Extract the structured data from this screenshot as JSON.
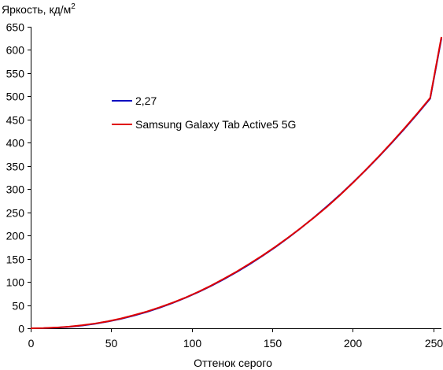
{
  "chart_data": {
    "type": "line",
    "title": "",
    "ylabel": "Яркость, кд/м",
    "ylabel_sup": "2",
    "xlabel": "Оттенок серого",
    "xlim": [
      0,
      255
    ],
    "ylim": [
      0,
      650
    ],
    "xticks": [
      0,
      50,
      100,
      150,
      200,
      250
    ],
    "yticks": [
      0,
      50,
      100,
      150,
      200,
      250,
      300,
      350,
      400,
      450,
      500,
      550,
      600,
      650
    ],
    "grid": false,
    "legend_position": "left-middle",
    "series": [
      {
        "name": "2,27",
        "color": "#0000c0",
        "x": [
          0,
          8,
          16,
          24,
          32,
          40,
          48,
          56,
          64,
          72,
          80,
          88,
          96,
          104,
          112,
          120,
          128,
          136,
          144,
          152,
          160,
          168,
          176,
          184,
          192,
          200,
          208,
          216,
          224,
          232,
          240,
          248,
          255
        ],
        "y": [
          0,
          0.27,
          1.3,
          3.2,
          6.0,
          9.8,
          14.6,
          20.4,
          27.3,
          35.2,
          44.3,
          54.4,
          65.6,
          77.9,
          91.3,
          105.8,
          121.5,
          138.3,
          156.2,
          175.2,
          195.4,
          216.8,
          239.3,
          263.0,
          287.8,
          313.9,
          341.1,
          369.5,
          399.1,
          429.9,
          461.9,
          495.1,
          625
        ]
      },
      {
        "name": "Samsung Galaxy Tab Active5 5G",
        "color": "#e00000",
        "x": [
          0,
          8,
          16,
          24,
          32,
          40,
          48,
          56,
          64,
          72,
          80,
          88,
          96,
          104,
          112,
          120,
          128,
          136,
          144,
          152,
          160,
          168,
          176,
          184,
          192,
          200,
          208,
          216,
          224,
          232,
          240,
          248,
          255
        ],
        "y": [
          0,
          0.4,
          1.6,
          3.6,
          6.5,
          10.3,
          15.0,
          21.0,
          28.2,
          36.0,
          45.0,
          55.0,
          66.0,
          78.5,
          92.0,
          107.0,
          122.5,
          139.5,
          157.0,
          176.0,
          196.0,
          217.0,
          239.0,
          262.0,
          287.0,
          313.5,
          341.5,
          370.0,
          400.0,
          431.0,
          463.0,
          496.5,
          628
        ]
      }
    ]
  }
}
